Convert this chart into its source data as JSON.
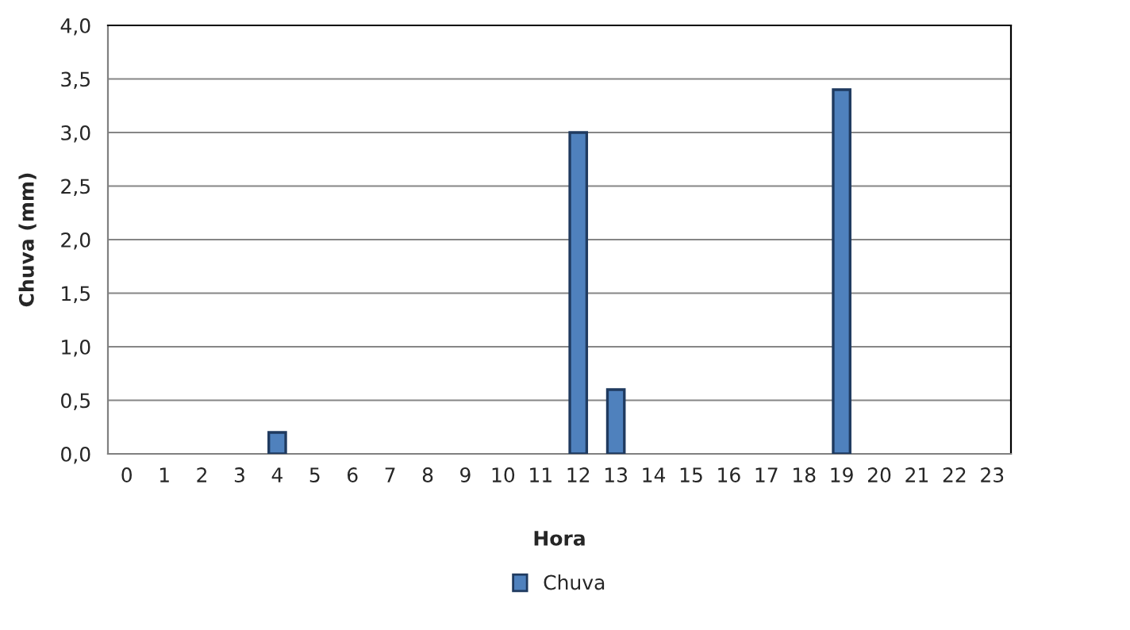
{
  "chart_data": {
    "type": "bar",
    "xlabel": "Hora",
    "ylabel": "Chuva (mm)",
    "categories": [
      "0",
      "1",
      "2",
      "3",
      "4",
      "5",
      "6",
      "7",
      "8",
      "9",
      "10",
      "11",
      "12",
      "13",
      "14",
      "15",
      "16",
      "17",
      "18",
      "19",
      "20",
      "21",
      "22",
      "23"
    ],
    "series": [
      {
        "name": "Chuva",
        "color": "#4f81bd",
        "values": [
          0,
          0,
          0,
          0,
          0.2,
          0,
          0,
          0,
          0,
          0,
          0,
          0,
          3.0,
          0.6,
          0,
          0,
          0,
          0,
          0,
          3.4,
          0,
          0,
          0,
          0
        ]
      }
    ],
    "ylim": [
      0,
      4
    ],
    "yticks": [
      {
        "value": 0,
        "label": "0,0"
      },
      {
        "value": 0.5,
        "label": "0,5"
      },
      {
        "value": 1,
        "label": "1,0"
      },
      {
        "value": 1.5,
        "label": "1,5"
      },
      {
        "value": 2,
        "label": "2,0"
      },
      {
        "value": 2.5,
        "label": "2,5"
      },
      {
        "value": 3,
        "label": "3,0"
      },
      {
        "value": 3.5,
        "label": "3,5"
      },
      {
        "value": 4,
        "label": "4,0"
      }
    ],
    "grid": "y",
    "legend": "bottom"
  }
}
